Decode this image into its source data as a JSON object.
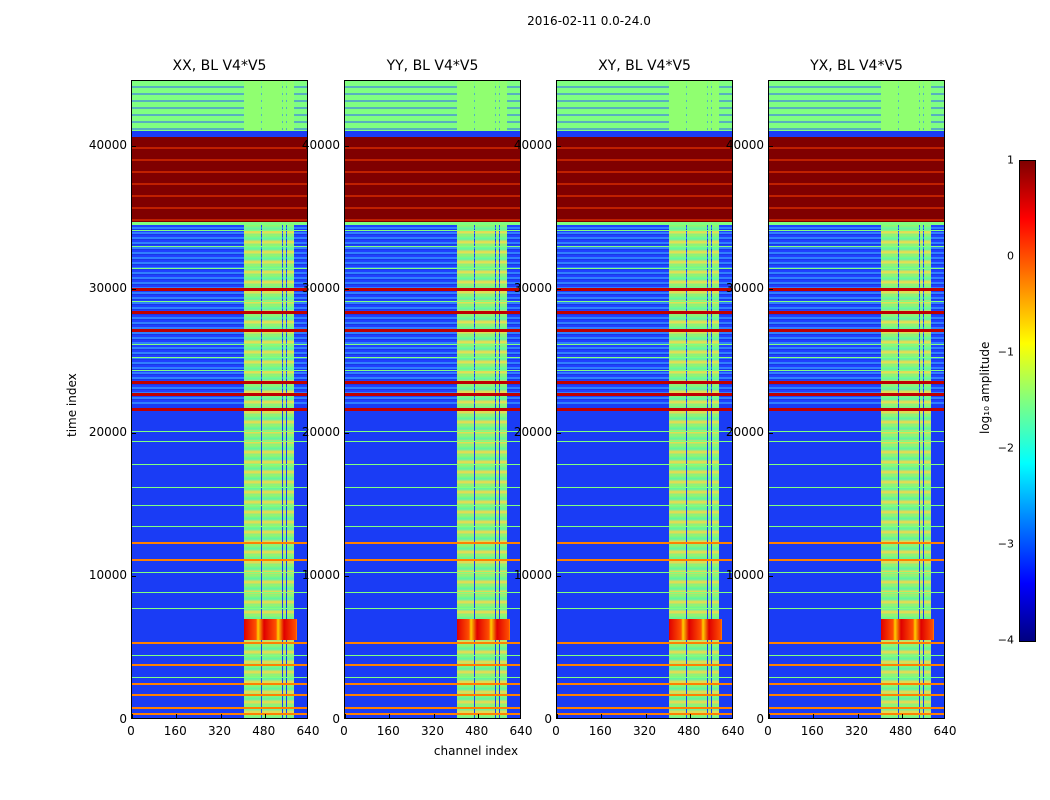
{
  "chart_data": {
    "type": "heatmap",
    "suptitle": "2016-02-11 0.0-24.0",
    "xlabel": "channel index",
    "ylabel": "time index",
    "xlim": [
      0,
      640
    ],
    "ylim": [
      0,
      44500
    ],
    "x_ticks": [
      "0",
      "160",
      "320",
      "480",
      "640"
    ],
    "y_ticks": [
      "0",
      "10000",
      "20000",
      "30000",
      "40000"
    ],
    "panels": [
      {
        "title": "XX, BL V4*V5"
      },
      {
        "title": "YY, BL V4*V5"
      },
      {
        "title": "XY, BL V4*V5"
      },
      {
        "title": "YX, BL V4*V5"
      }
    ],
    "colorbar": {
      "label": "log₁₀ amplitude",
      "min": -4,
      "max": 1,
      "ticks": [
        "1",
        "0",
        "−1",
        "−2",
        "−3",
        "−4"
      ],
      "colormap": "jet"
    }
  },
  "colors": {
    "background_noise": "#1a3cf5",
    "saturated": "#800000",
    "mid": "#80ff80",
    "band_hot": "#ff3000"
  }
}
